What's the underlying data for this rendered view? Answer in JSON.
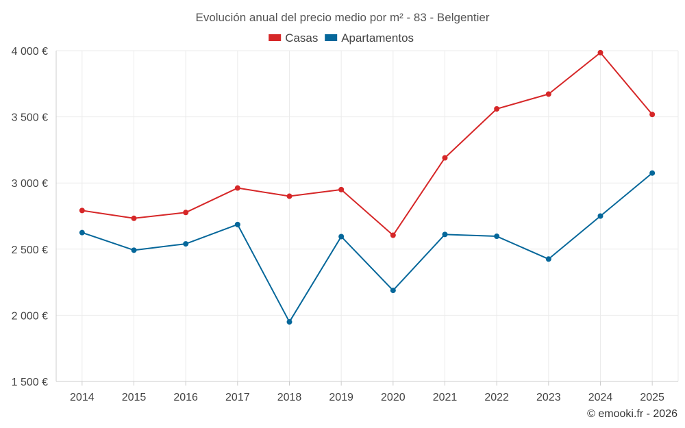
{
  "chart_data": {
    "type": "line",
    "title": "Evolución anual del precio medio por m² - 83 - Belgentier",
    "categories": [
      "2014",
      "2015",
      "2016",
      "2017",
      "2018",
      "2019",
      "2020",
      "2021",
      "2022",
      "2023",
      "2024",
      "2025"
    ],
    "series": [
      {
        "name": "Casas",
        "color": "#d62728",
        "values": [
          2792,
          2733,
          2777,
          2962,
          2900,
          2950,
          2605,
          3190,
          3560,
          3672,
          3985,
          3518
        ]
      },
      {
        "name": "Apartamentos",
        "color": "#05679a",
        "values": [
          2625,
          2492,
          2540,
          2686,
          1950,
          2595,
          2188,
          2611,
          2597,
          2425,
          2750,
          3075
        ]
      }
    ],
    "yticks": [
      1500,
      2000,
      2500,
      3000,
      3500,
      4000
    ],
    "ytick_labels": [
      "1 500 €",
      "2 000 €",
      "2 500 €",
      "3 000 €",
      "3 500 €",
      "4 000 €"
    ],
    "ylim": [
      1500,
      4000
    ],
    "xlabel": "",
    "ylabel": "",
    "legend_position": "top-center",
    "grid": true
  },
  "credit": "© emooki.fr - 2026"
}
